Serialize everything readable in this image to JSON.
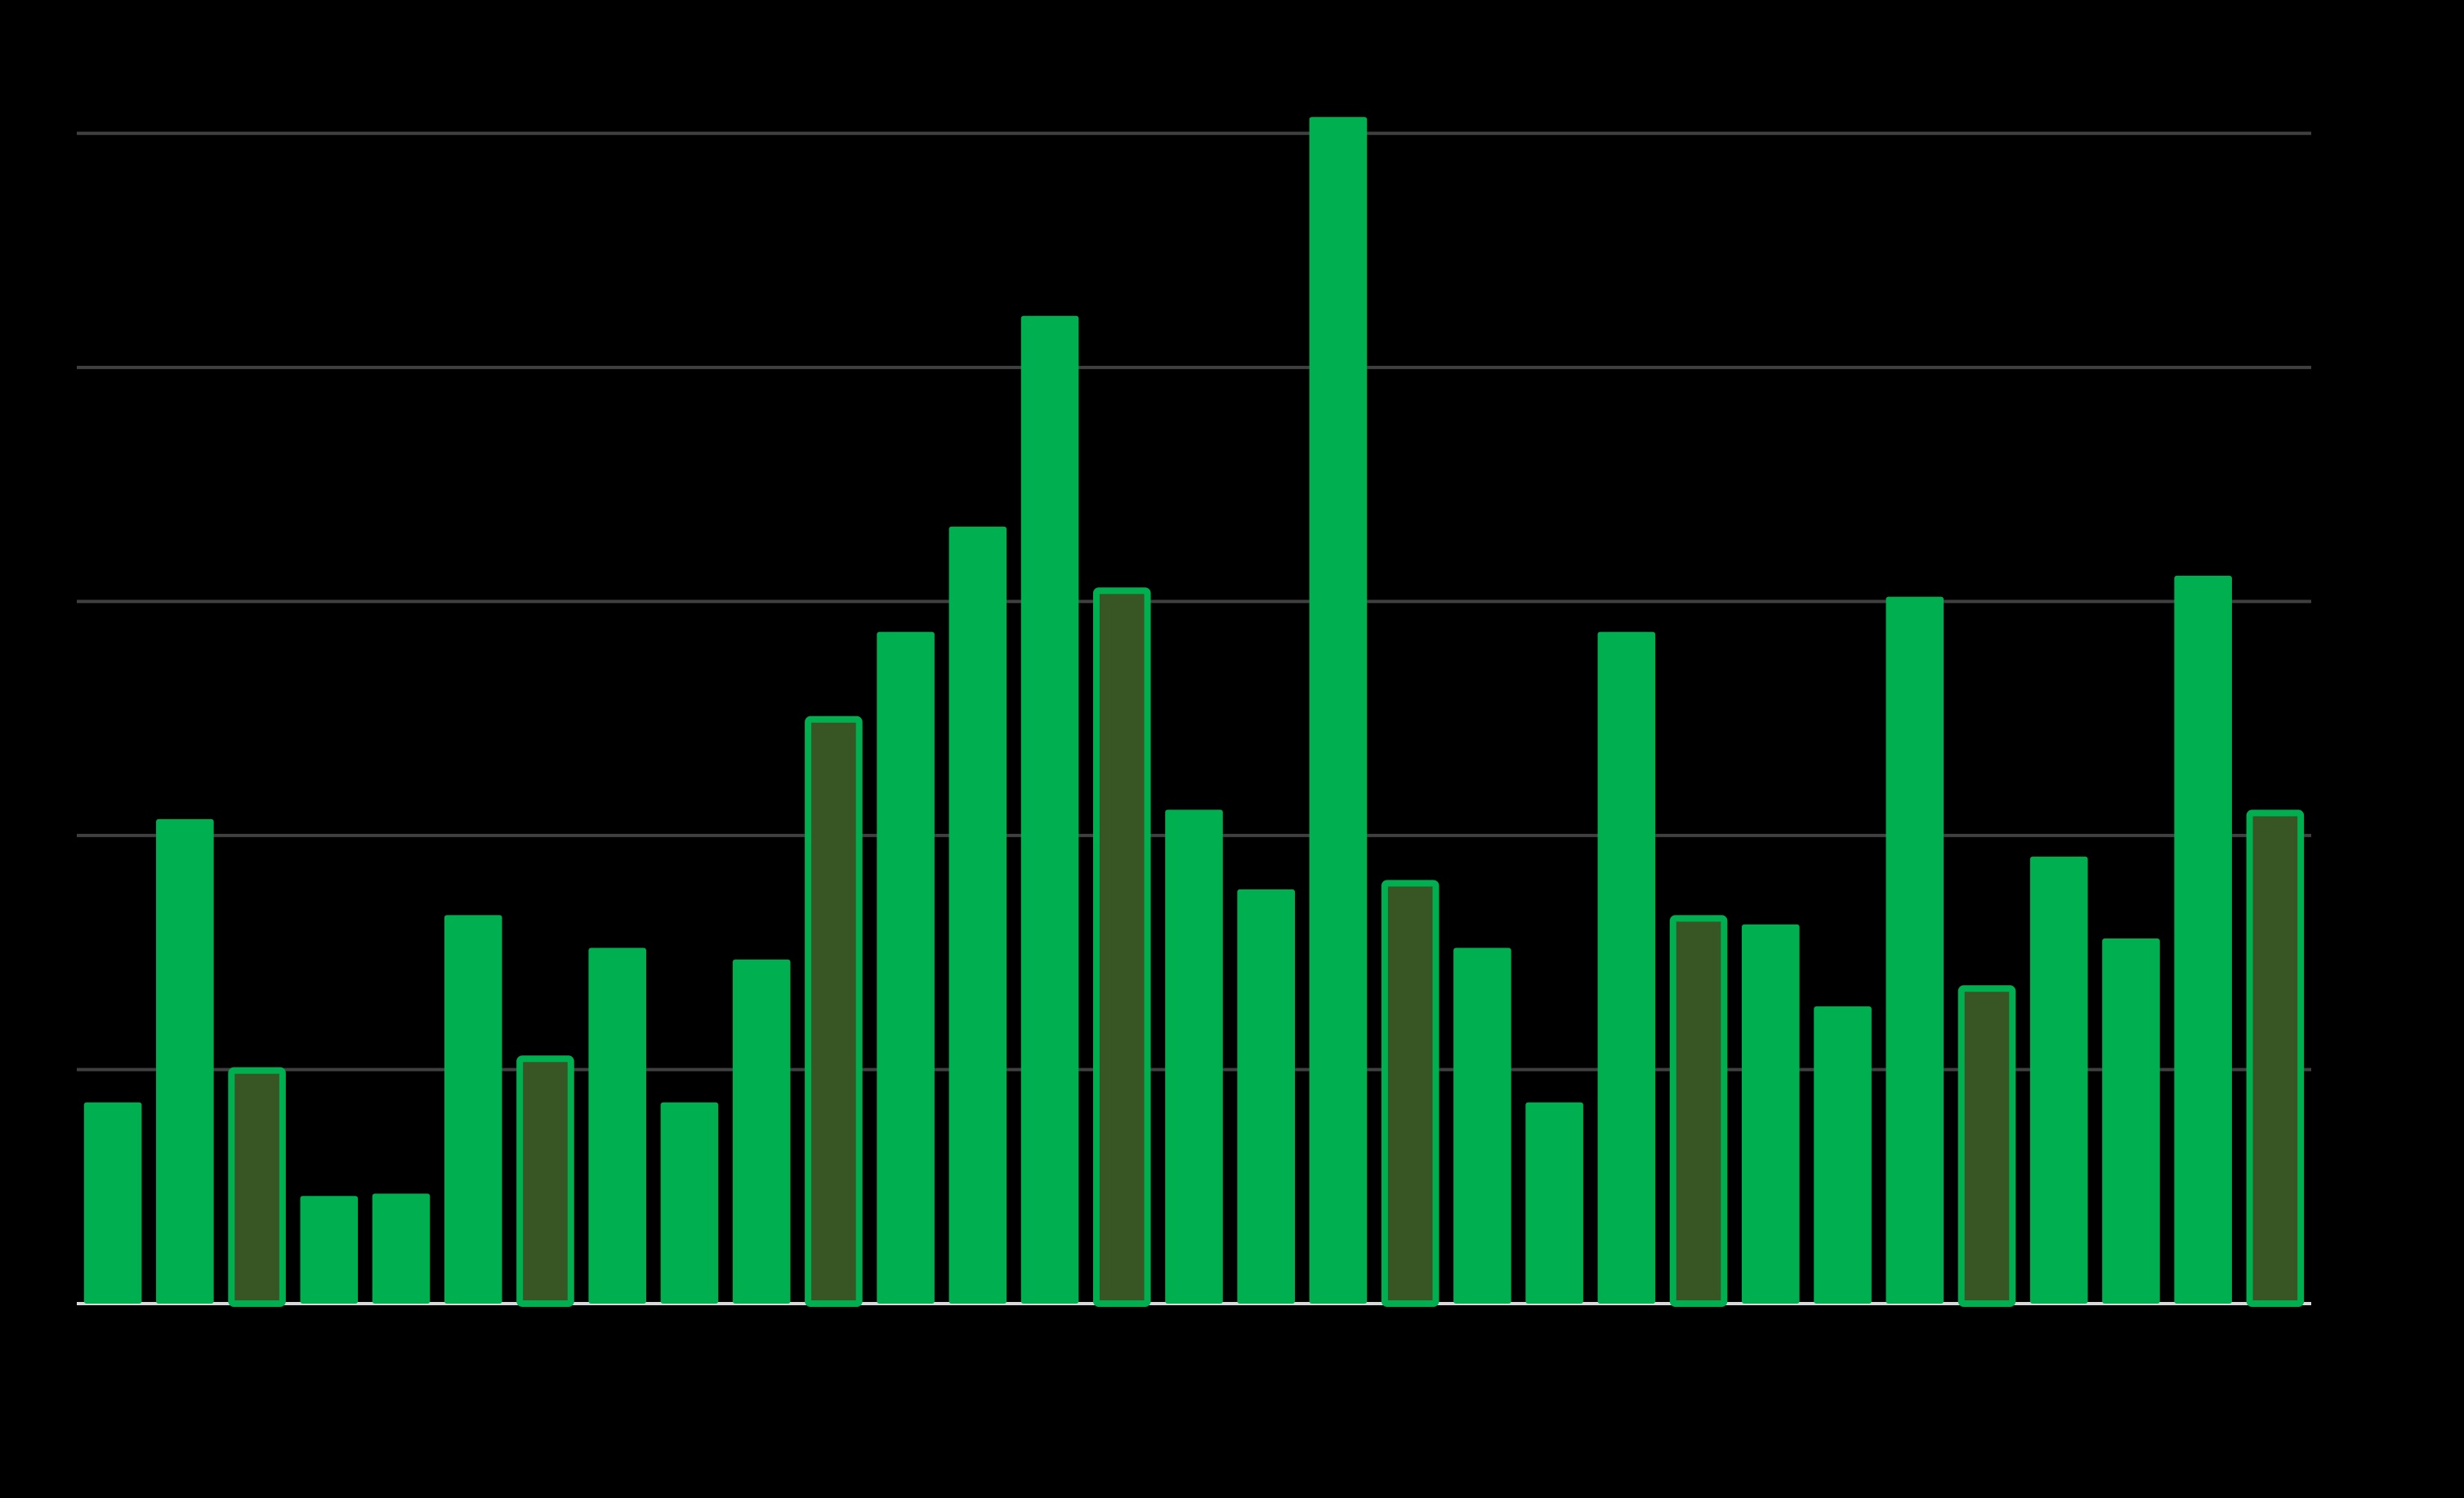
{
  "chart_data": {
    "type": "bar",
    "categories": [
      null,
      null,
      null,
      null,
      null,
      null,
      null,
      null,
      null,
      null,
      null,
      null,
      null,
      null,
      null,
      null,
      null,
      null,
      null,
      null,
      null,
      null,
      null,
      null,
      null,
      null,
      null,
      null,
      null,
      null,
      null
    ],
    "values": [
      0.86,
      2.07,
      1.01,
      0.46,
      0.47,
      1.66,
      1.06,
      1.52,
      0.86,
      1.47,
      2.51,
      2.87,
      3.32,
      4.22,
      3.06,
      2.11,
      1.77,
      5.07,
      1.81,
      1.52,
      0.86,
      2.87,
      1.66,
      1.62,
      1.27,
      3.02,
      1.36,
      1.91,
      1.56,
      3.11,
      2.11
    ],
    "colors": [
      "#00b050",
      "#00b050",
      "#375623",
      "#00b050",
      "#00b050",
      "#00b050",
      "#375623",
      "#00b050",
      "#00b050",
      "#00b050",
      "#375623",
      "#00b050",
      "#00b050",
      "#00b050",
      "#375623",
      "#00b050",
      "#00b050",
      "#00b050",
      "#375623",
      "#00b050",
      "#00b050",
      "#00b050",
      "#375623",
      "#00b050",
      "#00b050",
      "#00b050",
      "#375623",
      "#00b050",
      "#00b050",
      "#00b050",
      "#375623"
    ],
    "edgecolor": "#00b050",
    "ylim": [
      0,
      5.2
    ],
    "yticks": [
      0,
      1,
      2,
      3,
      4,
      5
    ],
    "grid": true
  }
}
